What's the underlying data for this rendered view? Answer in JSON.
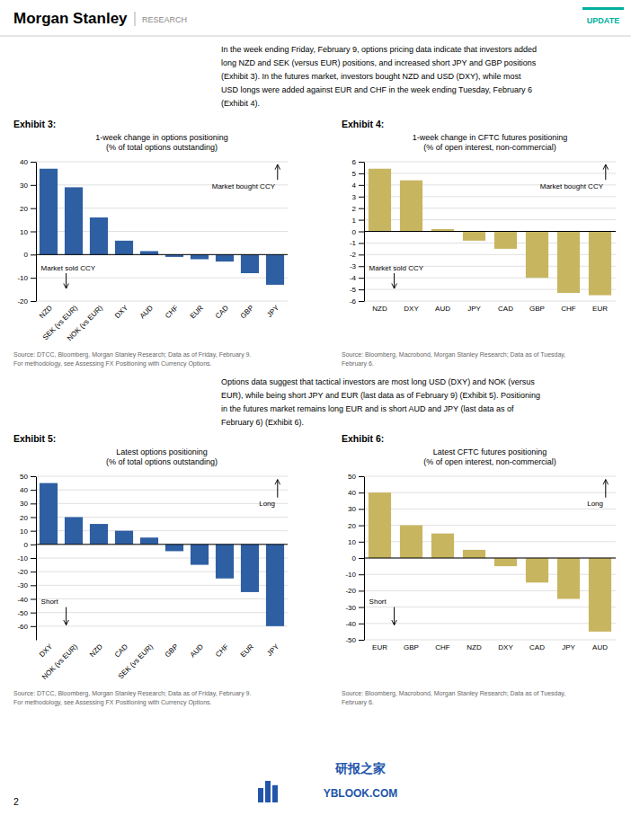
{
  "header_title": "Morgan Stanley",
  "header_subtitle": "RESEARCH",
  "header_label": "UPDATE",
  "header_label_color": "#00B0A0",
  "paragraphs": [
    [
      "In the week ending Friday, February 9, options pricing data indicate that investors added",
      "long NZD and SEK (versus EUR) positions, and increased short JPY and GBP positions",
      "(Exhibit 3). In the futures market, investors bought NZD and USD (DXY), while most",
      "USD longs were added against EUR and CHF in the week ending Tuesday, February 6",
      "(Exhibit 4)."
    ],
    [
      "Options data suggest that tactical investors are most long USD (DXY) and NOK (versus",
      "EUR), while being short JPY and EUR (last data as of February 9) (Exhibit 5). Positioning",
      "in the futures market remains long EUR and is short AUD and JPY (last data as of",
      "February 6) (Exhibit 6)."
    ]
  ],
  "chart_data": [
    {
      "type": "bar",
      "title": "Exhibit 3:",
      "subtitle": [
        "1-week change in options positioning",
        "(% of total options outstanding)"
      ],
      "categories": [
        "NZD",
        "SEK (vs EUR)",
        "NOK (vs EUR)",
        "DXY",
        "AUD",
        "CHF",
        "EUR",
        "CAD",
        "GBP",
        "JPY"
      ],
      "values": [
        37,
        29,
        16,
        6,
        1.5,
        -1,
        -2,
        -3,
        -8,
        -13
      ],
      "color": "#2E5FA3",
      "ylim": [
        -20,
        40
      ],
      "yticks": [
        -20,
        -10,
        0,
        10,
        20,
        30,
        40
      ],
      "grid": true,
      "annotations": [
        "Market bought CCY",
        "Market sold CCY"
      ],
      "source": [
        "Source: DTCC, Bloomberg, Morgan Stanley Research; Data as of Friday, February 9.",
        "For methodology, see Assessing FX Positioning with Currency Options."
      ]
    },
    {
      "type": "bar",
      "title": "Exhibit 4:",
      "subtitle": [
        "1-week change in CFTC futures positioning",
        "(% of open interest, non-commercial)"
      ],
      "categories": [
        "NZD",
        "DXY",
        "AUD",
        "JPY",
        "CAD",
        "GBP",
        "CHF",
        "EUR"
      ],
      "values": [
        5.4,
        4.4,
        0.2,
        -0.8,
        -1.5,
        -4.0,
        -5.3,
        -5.5
      ],
      "color": "#C8B560",
      "ylim": [
        -6,
        6
      ],
      "yticks": [
        -6,
        -5,
        -4,
        -3,
        -2,
        -1,
        0,
        1,
        2,
        3,
        4,
        5,
        6
      ],
      "grid": true,
      "annotations": [
        "Market bought CCY",
        "Market sold CCY"
      ],
      "source": [
        "Source: Bloomberg, Macrobond, Morgan Stanley Research; Data as of Tuesday,",
        "February 6."
      ]
    },
    {
      "type": "bar",
      "title": "Exhibit 5:",
      "subtitle": [
        "Latest options positioning",
        "(% of total options outstanding)"
      ],
      "categories": [
        "DXY",
        "NOK (vs EUR)",
        "NZD",
        "CAD",
        "SEK (vs EUR)",
        "GBP",
        "AUD",
        "CHF",
        "EUR",
        "JPY"
      ],
      "values": [
        45,
        20,
        15,
        10,
        5,
        -5,
        -15,
        -25,
        -35,
        -60
      ],
      "color": "#2E5FA3",
      "ylim": [
        -70,
        50
      ],
      "yticks": [
        -60,
        -50,
        -40,
        -30,
        -20,
        -10,
        0,
        10,
        20,
        30,
        40,
        50
      ],
      "grid": true,
      "annotations": [
        "Long",
        "Short"
      ],
      "source": [
        "Source: DTCC, Bloomberg, Morgan Stanley Research; Data as of Friday, February 9.",
        "For methodology, see Assessing FX Positioning with Currency Options."
      ]
    },
    {
      "type": "bar",
      "title": "Exhibit 6:",
      "subtitle": [
        "Latest CFTC futures positioning",
        "(% of open interest, non-commercial)"
      ],
      "categories": [
        "EUR",
        "GBP",
        "CHF",
        "NZD",
        "DXY",
        "CAD",
        "JPY",
        "AUD"
      ],
      "values": [
        40,
        20,
        15,
        5,
        -5,
        -15,
        -25,
        -45
      ],
      "color": "#C8B560",
      "ylim": [
        -50,
        50
      ],
      "yticks": [
        -50,
        -40,
        -30,
        -20,
        -10,
        0,
        10,
        20,
        30,
        40,
        50
      ],
      "grid": true,
      "annotations": [
        "Long",
        "Short"
      ],
      "source": [
        "Source: Bloomberg, Macrobond, Morgan Stanley Research; Data as of Tuesday,",
        "February 6."
      ]
    }
  ],
  "page_number": "2",
  "watermark": [
    "研报之家",
    "YBLOOK.COM"
  ]
}
